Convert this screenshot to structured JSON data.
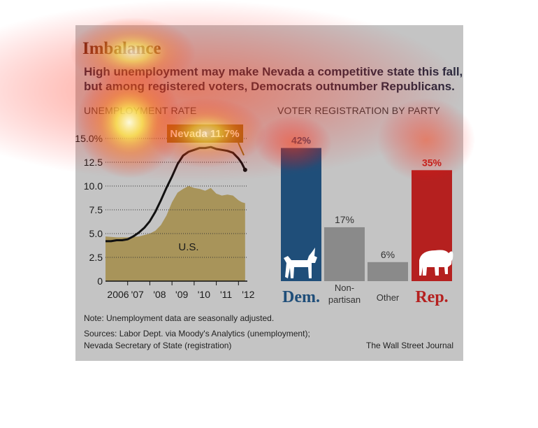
{
  "header": {
    "title": "Imbalance",
    "subtitle_line1": "High unemployment may make Nevada a competitive state this fall,",
    "subtitle_line2": "but among registered voters, Democrats outnumber Republicans."
  },
  "colors": {
    "dem": "#1f4e79",
    "rep": "#b5201f",
    "gray_bar": "#8a8a8a",
    "us_area": "#a8945a",
    "nevada_label_bg": "#8b6914",
    "nevada_line": "#111111"
  },
  "chart_data": [
    {
      "type": "line",
      "title": "UNEMPLOYMENT RATE",
      "xlabel": "",
      "ylabel": "",
      "ylim": [
        0,
        15
      ],
      "xlim": [
        2006,
        2012.4
      ],
      "grid": true,
      "y_ticks": [
        "0",
        "2.5",
        "5.0",
        "7.5",
        "10.0",
        "12.5",
        "15.0%"
      ],
      "x_ticks": [
        "2006",
        "'07",
        "'08",
        "'09",
        "'10",
        "'11",
        "'12"
      ],
      "annotations": [
        "Nevada 11.7%",
        "U.S."
      ],
      "series": [
        {
          "name": "Nevada",
          "style": "line",
          "x": [
            2006.0,
            2006.25,
            2006.5,
            2006.75,
            2007.0,
            2007.25,
            2007.5,
            2007.75,
            2008.0,
            2008.25,
            2008.5,
            2008.75,
            2009.0,
            2009.25,
            2009.5,
            2009.75,
            2010.0,
            2010.25,
            2010.5,
            2010.75,
            2011.0,
            2011.25,
            2011.5,
            2011.75,
            2012.0,
            2012.15,
            2012.3
          ],
          "y": [
            4.2,
            4.2,
            4.3,
            4.3,
            4.4,
            4.7,
            5.1,
            5.6,
            6.3,
            7.3,
            8.5,
            9.8,
            11.0,
            12.3,
            13.2,
            13.6,
            13.8,
            14.0,
            14.0,
            14.1,
            13.9,
            13.8,
            13.7,
            13.5,
            12.9,
            12.4,
            11.7
          ]
        },
        {
          "name": "U.S.",
          "style": "area",
          "x": [
            2006.0,
            2006.5,
            2007.0,
            2007.5,
            2008.0,
            2008.25,
            2008.5,
            2008.75,
            2009.0,
            2009.25,
            2009.5,
            2009.75,
            2010.0,
            2010.25,
            2010.5,
            2010.75,
            2011.0,
            2011.25,
            2011.5,
            2011.75,
            2012.0,
            2012.15,
            2012.3
          ],
          "y": [
            4.7,
            4.6,
            4.6,
            4.7,
            5.0,
            5.3,
            5.9,
            6.9,
            8.3,
            9.3,
            9.7,
            10.0,
            9.8,
            9.7,
            9.5,
            9.8,
            9.2,
            9.0,
            9.1,
            9.0,
            8.5,
            8.3,
            8.2
          ]
        }
      ]
    },
    {
      "type": "bar",
      "title": "VOTER REGISTRATION BY PARTY",
      "categories": [
        "Dem.",
        "Non-partisan",
        "Other",
        "Rep."
      ],
      "category_lines": [
        [
          "Dem."
        ],
        [
          "Non-",
          "partisan"
        ],
        [
          "Other"
        ],
        [
          "Rep."
        ]
      ],
      "values": [
        42,
        17,
        6,
        35
      ],
      "value_labels": [
        "42%",
        "17%",
        "6%",
        "35%"
      ],
      "colors": [
        "#1f4e79",
        "#8a8a8a",
        "#8a8a8a",
        "#b5201f"
      ],
      "icons": [
        "donkey-icon",
        "",
        "",
        "elephant-icon"
      ],
      "ylim": [
        0,
        45
      ]
    }
  ],
  "notes": {
    "note": "Note: Unemployment data are seasonally adjusted.",
    "sources_line1": "Sources: Labor Dept. via Moody's Analytics (unemployment);",
    "sources_line2": "Nevada Secretary of State (registration)",
    "credit": "The Wall Street Journal"
  }
}
